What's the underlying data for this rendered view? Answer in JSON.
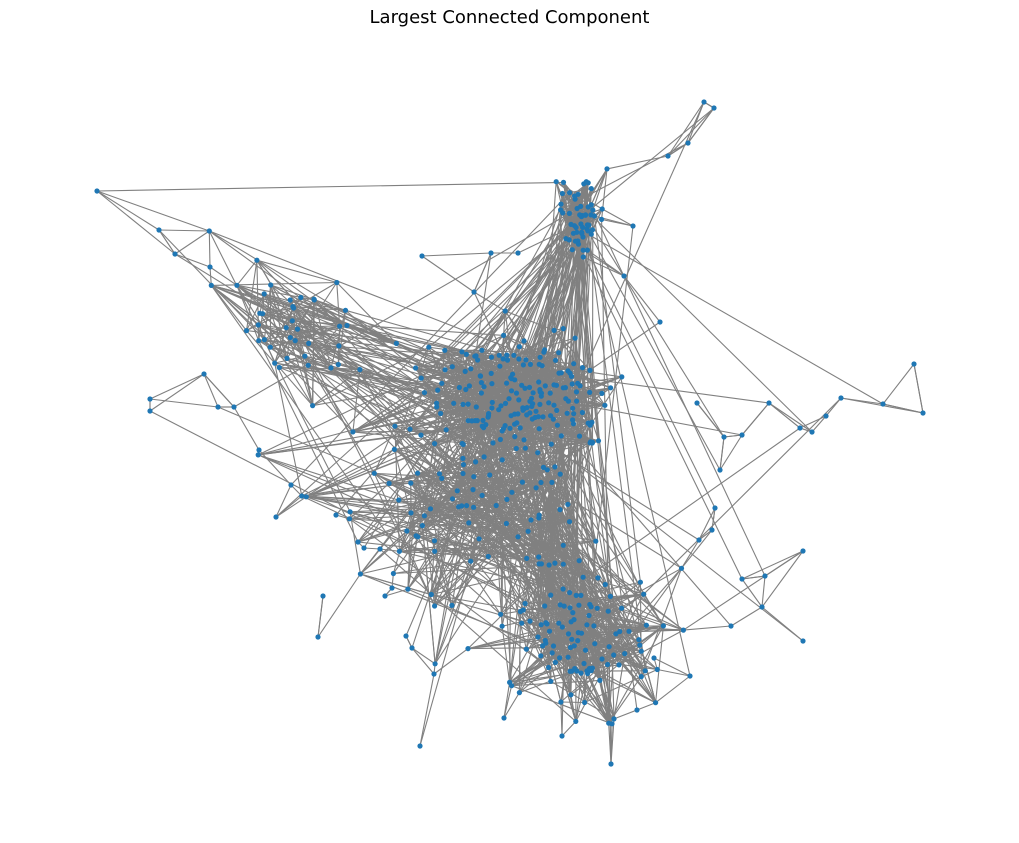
{
  "figure": {
    "title": "Largest Connected Component"
  },
  "graph": {
    "layout": "force-directed network drawing (no axes)",
    "node_color": "#1f77b4",
    "edge_color": "#808080"
  }
}
